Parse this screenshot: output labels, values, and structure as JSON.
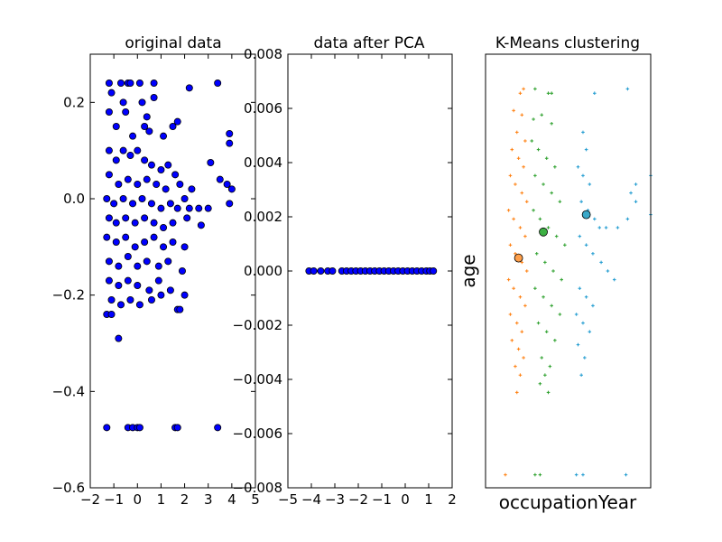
{
  "chart_data": [
    {
      "type": "scatter",
      "title": "original data",
      "xlabel": "",
      "ylabel": "",
      "xlim": [
        -2,
        5
      ],
      "ylim": [
        -0.6,
        0.3
      ],
      "xticks": [
        -2,
        -1,
        0,
        1,
        2,
        3,
        4,
        5
      ],
      "xtick_labels": [
        "−2",
        "−1",
        "0",
        "1",
        "2",
        "3",
        "4",
        "5"
      ],
      "yticks": [
        -0.6,
        -0.4,
        -0.2,
        0.0,
        0.2
      ],
      "ytick_labels": [
        "−0.6",
        "−0.4",
        "−0.2",
        "0.0",
        "0.2"
      ],
      "marker_color": "#0000ff",
      "marker_edge": "#000000",
      "points": [
        [
          -1.2,
          0.24
        ],
        [
          -1.1,
          0.22
        ],
        [
          -0.7,
          0.24
        ],
        [
          -0.4,
          0.24
        ],
        [
          -0.3,
          0.24
        ],
        [
          0.1,
          0.24
        ],
        [
          0.7,
          0.24
        ],
        [
          -0.6,
          0.2
        ],
        [
          0.7,
          0.21
        ],
        [
          0.2,
          0.2
        ],
        [
          2.2,
          0.23
        ],
        [
          3.4,
          0.24
        ],
        [
          -1.2,
          0.18
        ],
        [
          -0.5,
          0.18
        ],
        [
          0.4,
          0.17
        ],
        [
          1.5,
          0.15
        ],
        [
          0.3,
          0.15
        ],
        [
          -0.9,
          0.15
        ],
        [
          1.1,
          0.13
        ],
        [
          -0.2,
          0.13
        ],
        [
          0.5,
          0.14
        ],
        [
          1.7,
          0.16
        ],
        [
          3.9,
          0.135
        ],
        [
          3.9,
          0.115
        ],
        [
          -1.2,
          0.1
        ],
        [
          -0.9,
          0.08
        ],
        [
          -0.6,
          0.1
        ],
        [
          -0.3,
          0.09
        ],
        [
          0.0,
          0.1
        ],
        [
          0.3,
          0.08
        ],
        [
          0.6,
          0.07
        ],
        [
          1.0,
          0.06
        ],
        [
          1.3,
          0.07
        ],
        [
          1.6,
          0.05
        ],
        [
          3.1,
          0.075
        ],
        [
          3.5,
          0.04
        ],
        [
          -1.2,
          0.05
        ],
        [
          -0.8,
          0.03
        ],
        [
          -0.4,
          0.04
        ],
        [
          0.0,
          0.03
        ],
        [
          0.4,
          0.04
        ],
        [
          0.8,
          0.03
        ],
        [
          1.2,
          0.02
        ],
        [
          1.8,
          0.03
        ],
        [
          2.0,
          0.0
        ],
        [
          2.3,
          0.02
        ],
        [
          3.8,
          0.03
        ],
        [
          4.0,
          0.02
        ],
        [
          3.9,
          -0.01
        ],
        [
          -1.3,
          0.0
        ],
        [
          -1.0,
          -0.01
        ],
        [
          -0.6,
          0.0
        ],
        [
          -0.2,
          -0.01
        ],
        [
          0.2,
          0.0
        ],
        [
          0.6,
          -0.01
        ],
        [
          1.0,
          -0.02
        ],
        [
          1.4,
          -0.01
        ],
        [
          1.7,
          -0.02
        ],
        [
          2.2,
          -0.02
        ],
        [
          2.6,
          -0.02
        ],
        [
          3.0,
          -0.02
        ],
        [
          -1.2,
          -0.04
        ],
        [
          -0.9,
          -0.05
        ],
        [
          -0.5,
          -0.04
        ],
        [
          -0.1,
          -0.05
        ],
        [
          0.3,
          -0.04
        ],
        [
          0.7,
          -0.05
        ],
        [
          1.1,
          -0.06
        ],
        [
          1.5,
          -0.05
        ],
        [
          2.1,
          -0.04
        ],
        [
          2.7,
          -0.055
        ],
        [
          -1.3,
          -0.08
        ],
        [
          -0.9,
          -0.09
        ],
        [
          -0.5,
          -0.08
        ],
        [
          -0.1,
          -0.1
        ],
        [
          0.3,
          -0.09
        ],
        [
          0.7,
          -0.08
        ],
        [
          1.1,
          -0.1
        ],
        [
          1.5,
          -0.09
        ],
        [
          2.0,
          -0.1
        ],
        [
          -1.2,
          -0.13
        ],
        [
          -0.8,
          -0.14
        ],
        [
          -0.4,
          -0.12
        ],
        [
          0.0,
          -0.14
        ],
        [
          0.4,
          -0.13
        ],
        [
          0.9,
          -0.14
        ],
        [
          1.3,
          -0.13
        ],
        [
          1.9,
          -0.15
        ],
        [
          -1.2,
          -0.17
        ],
        [
          -0.8,
          -0.18
        ],
        [
          -0.4,
          -0.17
        ],
        [
          0.0,
          -0.18
        ],
        [
          0.5,
          -0.19
        ],
        [
          0.9,
          -0.17
        ],
        [
          1.4,
          -0.19
        ],
        [
          2.0,
          -0.2
        ],
        [
          -1.1,
          -0.21
        ],
        [
          -0.7,
          -0.22
        ],
        [
          -0.3,
          -0.21
        ],
        [
          0.1,
          -0.22
        ],
        [
          0.6,
          -0.21
        ],
        [
          1.0,
          -0.2
        ],
        [
          1.7,
          -0.23
        ],
        [
          1.8,
          -0.23
        ],
        [
          -1.3,
          -0.24
        ],
        [
          -1.1,
          -0.24
        ],
        [
          -0.8,
          -0.29
        ],
        [
          -1.3,
          -0.475
        ],
        [
          -0.4,
          -0.475
        ],
        [
          -0.2,
          -0.475
        ],
        [
          0.0,
          -0.475
        ],
        [
          0.1,
          -0.475
        ],
        [
          1.6,
          -0.475
        ],
        [
          1.7,
          -0.475
        ],
        [
          3.4,
          -0.475
        ]
      ]
    },
    {
      "type": "scatter",
      "title": "data after PCA",
      "xlabel": "",
      "ylabel": "",
      "xlim": [
        -5,
        2
      ],
      "ylim": [
        -0.008,
        0.008
      ],
      "xticks": [
        -5,
        -4,
        -3,
        -2,
        -1,
        0,
        1,
        2
      ],
      "xtick_labels": [
        "−5",
        "−4",
        "−3",
        "−2",
        "−1",
        "0",
        "1",
        "2"
      ],
      "yticks": [
        -0.008,
        -0.006,
        -0.004,
        -0.002,
        0.0,
        0.002,
        0.004,
        0.006,
        0.008
      ],
      "ytick_labels": [
        "−0.008",
        "−0.006",
        "−0.004",
        "−0.002",
        "0.000",
        "0.002",
        "0.004",
        "0.006",
        "0.008"
      ],
      "marker_color": "#0000ff",
      "marker_edge": "#000000",
      "points": [
        [
          -4.1,
          0
        ],
        [
          -3.9,
          0
        ],
        [
          -3.6,
          0
        ],
        [
          -3.3,
          0
        ],
        [
          -3.1,
          0
        ],
        [
          -2.7,
          0
        ],
        [
          -2.5,
          0
        ],
        [
          -2.3,
          0
        ],
        [
          -2.1,
          0
        ],
        [
          -1.9,
          0
        ],
        [
          -1.7,
          0
        ],
        [
          -1.5,
          0
        ],
        [
          -1.3,
          0
        ],
        [
          -1.1,
          0
        ],
        [
          -0.9,
          0
        ],
        [
          -0.7,
          0
        ],
        [
          -0.5,
          0
        ],
        [
          -0.3,
          0
        ],
        [
          -0.1,
          0
        ],
        [
          0.1,
          0
        ],
        [
          0.3,
          0
        ],
        [
          0.5,
          0
        ],
        [
          0.7,
          0
        ],
        [
          0.9,
          0
        ],
        [
          1.05,
          0
        ],
        [
          1.2,
          0
        ]
      ]
    },
    {
      "type": "scatter",
      "title": "K-Means clustering",
      "xlabel": "occupationYear",
      "ylabel": "age",
      "xticks": [],
      "yticks": [],
      "xlim": [
        0,
        100
      ],
      "ylim": [
        0,
        100
      ],
      "series": [
        {
          "color": "#ff7f0e",
          "points": [
            [
              21,
              91
            ],
            [
              23,
              92
            ],
            [
              17,
              87
            ],
            [
              22,
              86
            ],
            [
              19,
              82
            ],
            [
              24,
              80
            ],
            [
              16,
              78
            ],
            [
              20,
              76
            ],
            [
              23,
              74
            ],
            [
              15,
              72
            ],
            [
              18,
              70
            ],
            [
              22,
              68
            ],
            [
              25,
              66
            ],
            [
              14,
              64
            ],
            [
              17,
              62
            ],
            [
              21,
              60
            ],
            [
              24,
              58
            ],
            [
              15,
              56
            ],
            [
              18,
              54
            ],
            [
              22,
              52
            ],
            [
              25,
              50
            ],
            [
              14,
              48
            ],
            [
              17,
              46
            ],
            [
              21,
              44
            ],
            [
              24,
              42
            ],
            [
              15,
              40
            ],
            [
              19,
              38
            ],
            [
              22,
              36
            ],
            [
              16,
              34
            ],
            [
              20,
              32
            ],
            [
              23,
              30
            ],
            [
              18,
              28
            ],
            [
              21,
              26
            ],
            [
              19,
              22
            ],
            [
              12,
              3
            ]
          ]
        },
        {
          "color": "#2ca02c",
          "points": [
            [
              30,
              92
            ],
            [
              38,
              91
            ],
            [
              40,
              91
            ],
            [
              29,
              85
            ],
            [
              34,
              86
            ],
            [
              40,
              84
            ],
            [
              28,
              80
            ],
            [
              32,
              78
            ],
            [
              37,
              76
            ],
            [
              42,
              74
            ],
            [
              30,
              72
            ],
            [
              35,
              70
            ],
            [
              40,
              68
            ],
            [
              45,
              66
            ],
            [
              29,
              64
            ],
            [
              33,
              62
            ],
            [
              38,
              60
            ],
            [
              43,
              58
            ],
            [
              48,
              56
            ],
            [
              31,
              54
            ],
            [
              36,
              52
            ],
            [
              41,
              50
            ],
            [
              46,
              48
            ],
            [
              30,
              46
            ],
            [
              35,
              44
            ],
            [
              40,
              42
            ],
            [
              45,
              40
            ],
            [
              32,
              38
            ],
            [
              37,
              36
            ],
            [
              42,
              34
            ],
            [
              34,
              30
            ],
            [
              39,
              28
            ],
            [
              36,
              26
            ],
            [
              33,
              24
            ],
            [
              38,
              22
            ],
            [
              30,
              3
            ],
            [
              33,
              3
            ]
          ]
        },
        {
          "color": "#1f9bd0",
          "points": [
            [
              66,
              91
            ],
            [
              86,
              92
            ],
            [
              59,
              82
            ],
            [
              61,
              78
            ],
            [
              56,
              74
            ],
            [
              59,
              72
            ],
            [
              63,
              70
            ],
            [
              58,
              66
            ],
            [
              62,
              64
            ],
            [
              66,
              62
            ],
            [
              69,
              60
            ],
            [
              73,
              60
            ],
            [
              80,
              60
            ],
            [
              86,
              62
            ],
            [
              91,
              66
            ],
            [
              57,
              58
            ],
            [
              61,
              56
            ],
            [
              65,
              54
            ],
            [
              70,
              52
            ],
            [
              74,
              50
            ],
            [
              78,
              48
            ],
            [
              57,
              46
            ],
            [
              61,
              44
            ],
            [
              65,
              42
            ],
            [
              55,
              40
            ],
            [
              59,
              38
            ],
            [
              63,
              36
            ],
            [
              56,
              33
            ],
            [
              60,
              30
            ],
            [
              58,
              26
            ],
            [
              88,
              68
            ],
            [
              91,
              70
            ],
            [
              100,
              72
            ],
            [
              100,
              63
            ],
            [
              55,
              3
            ],
            [
              59,
              3
            ],
            [
              85,
              3
            ]
          ]
        }
      ],
      "centroids": [
        {
          "color": "#ff9f4a",
          "point": [
            20,
            53
          ]
        },
        {
          "color": "#3cb043",
          "point": [
            35,
            59
          ]
        },
        {
          "color": "#3aa8c8",
          "point": [
            61,
            63
          ]
        }
      ]
    }
  ]
}
